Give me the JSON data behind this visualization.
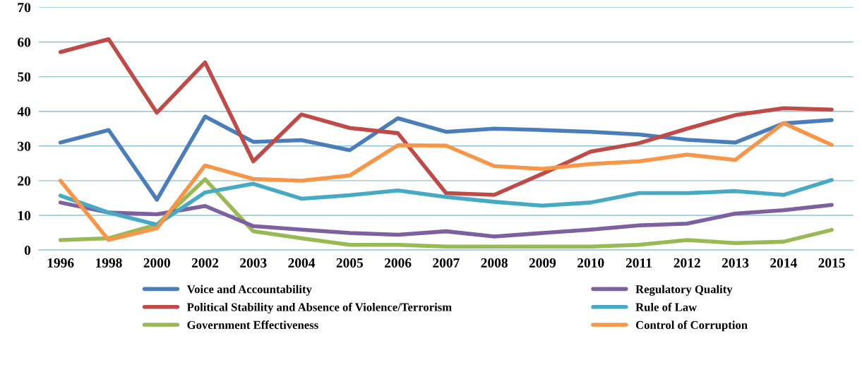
{
  "chart_data": {
    "type": "line",
    "categories": [
      "1996",
      "1998",
      "2000",
      "2002",
      "2003",
      "2004",
      "2005",
      "2006",
      "2007",
      "2008",
      "2009",
      "2010",
      "2011",
      "2012",
      "2013",
      "2014",
      "2015"
    ],
    "series": [
      {
        "name": "Voice and Accountability",
        "color": "#4a7ebb",
        "values": [
          31,
          34.6,
          14.5,
          38.5,
          31.2,
          31.7,
          28.8,
          38,
          34.1,
          35,
          34.6,
          34.1,
          33.3,
          31.8,
          31,
          36.5,
          37.5
        ]
      },
      {
        "name": "Political Stability and Absence of Violence/Terrorism",
        "color": "#be4b48",
        "values": [
          57.1,
          60.8,
          39.6,
          54.1,
          25.6,
          39.1,
          35.2,
          33.7,
          16.4,
          15.9,
          22,
          28.4,
          30.8,
          35,
          38.9,
          40.9,
          40.5
        ]
      },
      {
        "name": "Government Effectiveness",
        "color": "#98b954",
        "values": [
          2.9,
          3.4,
          7.3,
          20.4,
          5.4,
          3.4,
          1.5,
          1.5,
          1,
          1,
          1,
          1,
          1.5,
          2.9,
          2,
          2.4,
          5.8
        ]
      },
      {
        "name": "Regulatory Quality",
        "color": "#7d60a0",
        "values": [
          13.7,
          10.8,
          10.3,
          12.7,
          6.9,
          5.9,
          4.9,
          4.4,
          5.4,
          3.9,
          4.9,
          5.9,
          7.1,
          7.6,
          10.5,
          11.5,
          13
        ]
      },
      {
        "name": "Rule of Law",
        "color": "#46aac5",
        "values": [
          15.7,
          10.8,
          7.3,
          16.6,
          19.1,
          14.8,
          15.8,
          17.2,
          15.3,
          13.9,
          12.8,
          13.7,
          16.4,
          16.4,
          17,
          15.9,
          20.2
        ]
      },
      {
        "name": "Control of Corruption",
        "color": "#f79646",
        "values": [
          20,
          2.9,
          6.3,
          24.4,
          20.5,
          20,
          21.5,
          30.2,
          30.1,
          24.2,
          23.4,
          24.8,
          25.6,
          27.5,
          26,
          36.6,
          30.3
        ]
      }
    ],
    "ylim": [
      0,
      70
    ],
    "yticks": [
      0,
      10,
      20,
      30,
      40,
      50,
      60,
      70
    ],
    "grid": "y",
    "legend": "bottom",
    "marker": "none",
    "line_style": "solid"
  }
}
